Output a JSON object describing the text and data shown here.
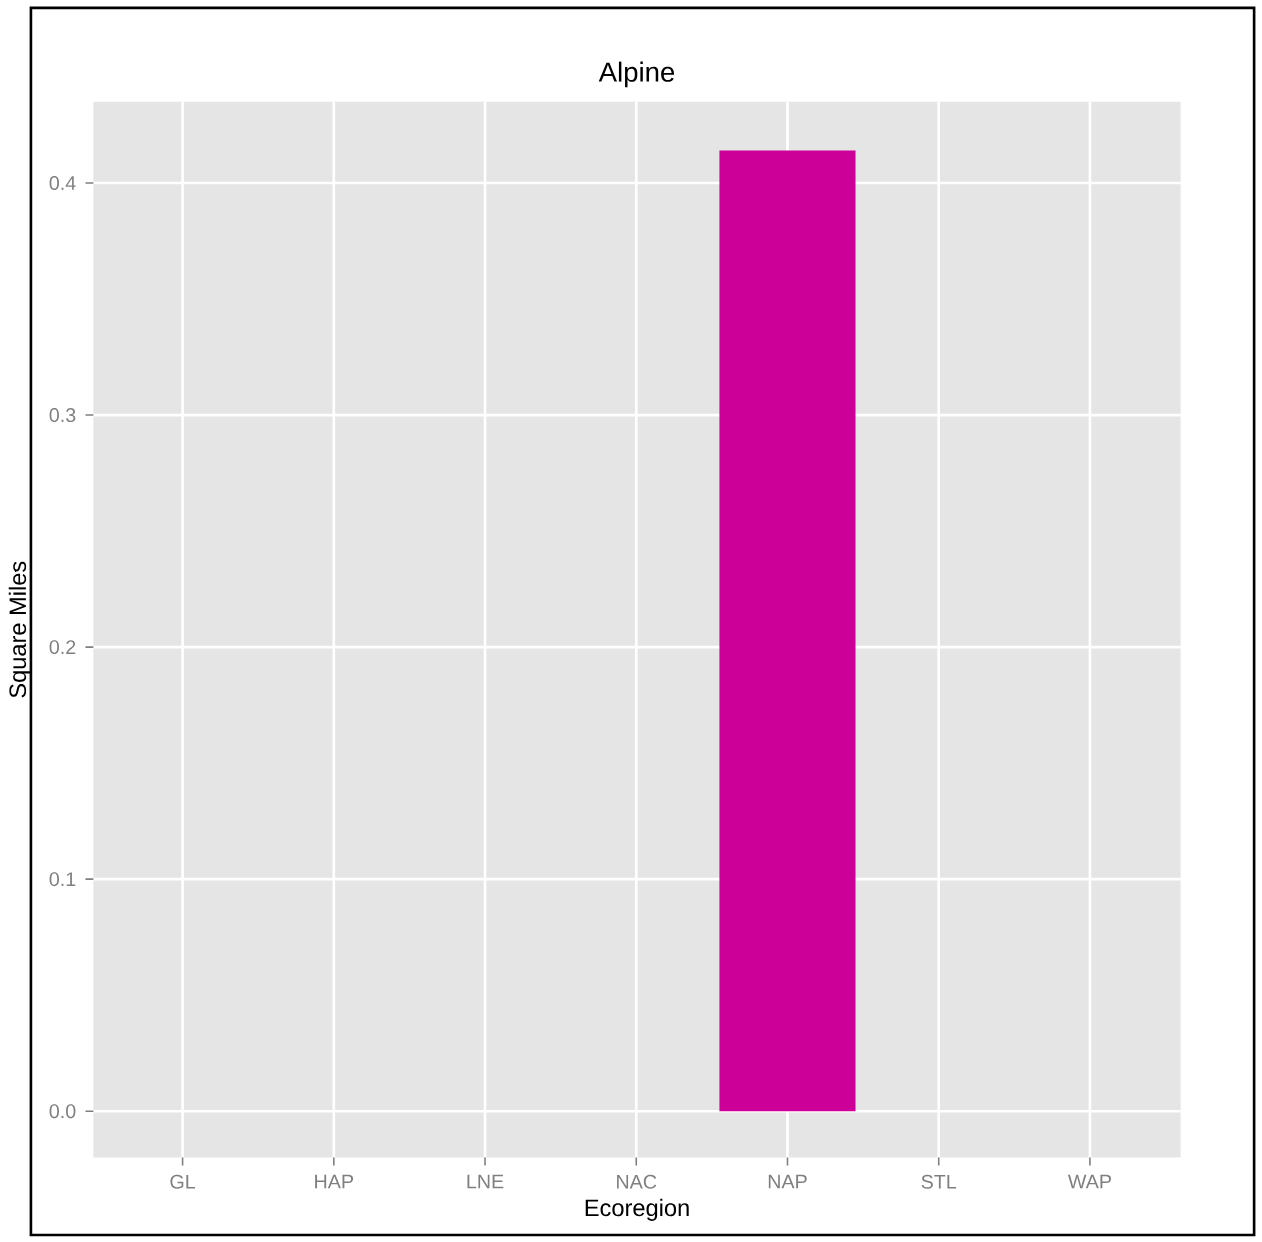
{
  "chart_data": {
    "type": "bar",
    "title": "Alpine",
    "xlabel": "Ecoregion",
    "ylabel": "Square Miles",
    "categories": [
      "GL",
      "HAP",
      "LNE",
      "NAC",
      "NAP",
      "STL",
      "WAP"
    ],
    "values": [
      null,
      null,
      null,
      null,
      0.414,
      null,
      null
    ],
    "color": "#cc0099",
    "ylim": [
      -0.02,
      0.435
    ],
    "yticks": [
      {
        "value": 0,
        "label": "0.0"
      },
      0.1,
      0.2,
      0.3,
      0.4
    ],
    "grid": true
  }
}
